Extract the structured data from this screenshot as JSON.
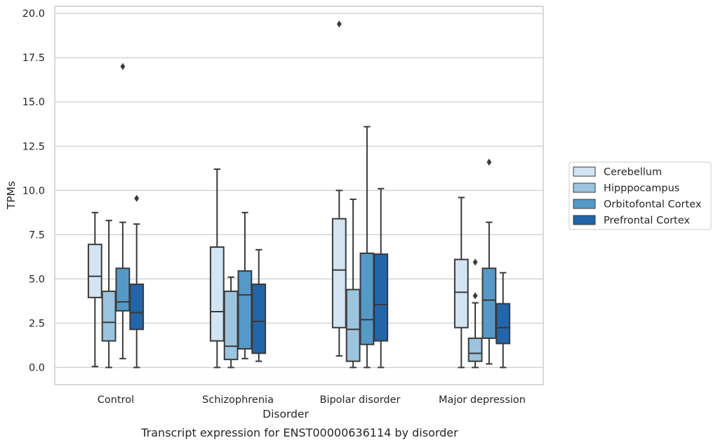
{
  "chart_data": {
    "type": "box",
    "title": "",
    "caption": "Transcript expression for ENST00000636114 by disorder",
    "xlabel": "Disorder",
    "ylabel": "TPMs",
    "ylim": [
      -0.95,
      20.4
    ],
    "yticks": [
      0.0,
      2.5,
      5.0,
      7.5,
      10.0,
      12.5,
      15.0,
      17.5,
      20.0
    ],
    "ytick_labels": [
      "0.0",
      "2.5",
      "5.0",
      "7.5",
      "10.0",
      "12.5",
      "15.0",
      "17.5",
      "20.0"
    ],
    "grid": "horizontal",
    "legend_position": "right",
    "categories": [
      "Control",
      "Schizophrenia",
      "Bipolar disorder",
      "Major depression"
    ],
    "series": [
      {
        "name": "Cerebellum",
        "color": "#d3e4f3",
        "boxes": [
          {
            "whislo": 0.05,
            "q1": 3.95,
            "med": 5.15,
            "q3": 6.95,
            "whishi": 8.75,
            "fliers": []
          },
          {
            "whislo": 0.0,
            "q1": 1.5,
            "med": 3.15,
            "q3": 6.8,
            "whishi": 11.2,
            "fliers": []
          },
          {
            "whislo": 0.65,
            "q1": 2.25,
            "med": 5.5,
            "q3": 8.4,
            "whishi": 10.0,
            "fliers": [
              19.4
            ]
          },
          {
            "whislo": 0.0,
            "q1": 2.25,
            "med": 4.25,
            "q3": 6.1,
            "whishi": 9.6,
            "fliers": []
          }
        ]
      },
      {
        "name": "Hipppocampus",
        "color": "#9cc4de",
        "boxes": [
          {
            "whislo": 0.0,
            "q1": 1.5,
            "med": 2.55,
            "q3": 4.3,
            "whishi": 8.3,
            "fliers": []
          },
          {
            "whislo": 0.0,
            "q1": 0.45,
            "med": 1.2,
            "q3": 4.3,
            "whishi": 5.1,
            "fliers": []
          },
          {
            "whislo": 0.0,
            "q1": 0.35,
            "med": 2.15,
            "q3": 4.4,
            "whishi": 9.5,
            "fliers": []
          },
          {
            "whislo": 0.0,
            "q1": 0.35,
            "med": 0.8,
            "q3": 1.65,
            "whishi": 3.65,
            "fliers": [
              4.05,
              5.95
            ]
          }
        ]
      },
      {
        "name": "Orbitofontal Cortex",
        "color": "#5599c9",
        "boxes": [
          {
            "whislo": 0.5,
            "q1": 3.2,
            "med": 3.7,
            "q3": 5.6,
            "whishi": 8.2,
            "fliers": [
              17.0
            ]
          },
          {
            "whislo": 0.5,
            "q1": 1.05,
            "med": 4.1,
            "q3": 5.45,
            "whishi": 8.75,
            "fliers": []
          },
          {
            "whislo": 0.0,
            "q1": 1.3,
            "med": 2.7,
            "q3": 6.45,
            "whishi": 13.6,
            "fliers": []
          },
          {
            "whislo": 0.2,
            "q1": 1.65,
            "med": 3.8,
            "q3": 5.6,
            "whishi": 8.2,
            "fliers": [
              11.6
            ]
          }
        ]
      },
      {
        "name": "Prefrontal Cortex",
        "color": "#2265aa",
        "boxes": [
          {
            "whislo": 0.0,
            "q1": 2.15,
            "med": 3.1,
            "q3": 4.7,
            "whishi": 8.1,
            "fliers": [
              9.55
            ]
          },
          {
            "whislo": 0.35,
            "q1": 0.8,
            "med": 2.6,
            "q3": 4.7,
            "whishi": 6.65,
            "fliers": []
          },
          {
            "whislo": 0.0,
            "q1": 1.5,
            "med": 3.55,
            "q3": 6.4,
            "whishi": 10.1,
            "fliers": []
          },
          {
            "whislo": 0.0,
            "q1": 1.35,
            "med": 2.25,
            "q3": 3.6,
            "whishi": 5.35,
            "fliers": []
          }
        ]
      }
    ]
  }
}
